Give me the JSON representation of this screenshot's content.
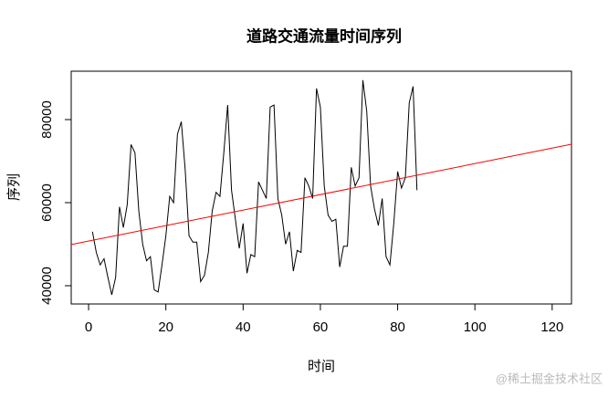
{
  "chart_data": {
    "type": "line",
    "title": "道路交通流量时间序列",
    "x_label": "时间",
    "y_label": "序列",
    "watermark": "@稀土掘金技术社区",
    "x": [
      1,
      2,
      3,
      4,
      5,
      6,
      7,
      8,
      9,
      10,
      11,
      12,
      13,
      14,
      15,
      16,
      17,
      18,
      19,
      20,
      21,
      22,
      23,
      24,
      25,
      26,
      27,
      28,
      29,
      30,
      31,
      32,
      33,
      34,
      35,
      36,
      37,
      38,
      39,
      40,
      41,
      42,
      43,
      44,
      45,
      46,
      47,
      48,
      49,
      50,
      51,
      52,
      53,
      54,
      55,
      56,
      57,
      58,
      59,
      60,
      61,
      62,
      63,
      64,
      65,
      66,
      67,
      68,
      69,
      70,
      71,
      72,
      73,
      74,
      75,
      76,
      77,
      78,
      79,
      80,
      81,
      82,
      83,
      84,
      85
    ],
    "series": [
      {
        "color": "#000000",
        "values": [
          53000,
          48000,
          45000,
          46500,
          42000,
          37800,
          42000,
          59000,
          54000,
          59500,
          74000,
          72000,
          58000,
          50000,
          46000,
          47000,
          39000,
          38500,
          45000,
          52000,
          61500,
          60000,
          76500,
          79500,
          68000,
          52000,
          50500,
          50500,
          41000,
          42500,
          48000,
          58000,
          62500,
          61500,
          72000,
          83500,
          63000,
          56000,
          49000,
          55000,
          43000,
          47500,
          47000,
          65000,
          63000,
          61000,
          83000,
          83500,
          61000,
          57000,
          50000,
          53000,
          43500,
          48500,
          48000,
          66000,
          64000,
          61000,
          87500,
          83000,
          64000,
          57000,
          55500,
          56000,
          44500,
          49500,
          49500,
          68500,
          64000,
          66000,
          89500,
          82000,
          64000,
          58500,
          54500,
          61000,
          47000,
          45000,
          55000,
          67500,
          63500,
          66000,
          84000,
          88000,
          63000
        ]
      },
      {
        "color": "#ff0000",
        "x": [
          -4.5,
          125
        ],
        "values": [
          49900,
          74070
        ]
      }
    ],
    "xlim": [
      -4.5,
      125
    ],
    "ylim": [
      35600,
      91650
    ],
    "xticks": [
      0,
      20,
      40,
      60,
      80,
      100,
      120
    ],
    "yticks": [
      40000,
      60000,
      80000
    ]
  }
}
